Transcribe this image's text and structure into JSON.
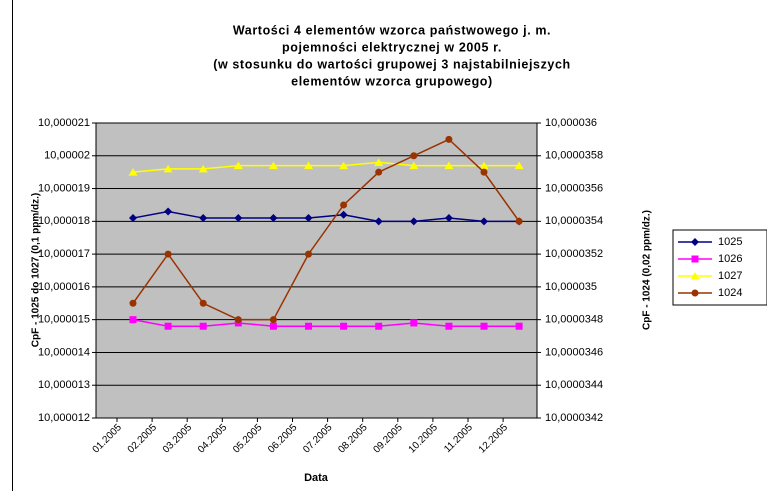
{
  "chart_data": {
    "type": "line",
    "title": [
      "Wartości 4 elementów wzorca państwowego j. m.",
      "pojemności elektrycznej w 2005 r.",
      "(w stosunku do wartości grupowej 3 najstabilniejszych",
      "elementów wzorca grupowego)"
    ],
    "x_label": "Data",
    "y_label": "CpF - 1025 do 1027 (0,1 ppm/dz.)",
    "y2_label": "CpF - 1024 (0,02 ppm/dz.)",
    "categories": [
      "01.2005",
      "02.2005",
      "03.2005",
      "04.2005",
      "05.2005",
      "06.2005",
      "07.2005",
      "08.2005",
      "09.2005",
      "10.2005",
      "11.2005",
      "12.2005"
    ],
    "ylim": [
      10.000012,
      10.000021
    ],
    "yticks": [
      {
        "value": 10.000012,
        "label": "10,000012"
      },
      {
        "value": 10.000013,
        "label": "10,000013"
      },
      {
        "value": 10.000014,
        "label": "10,000014"
      },
      {
        "value": 10.000015,
        "label": "10,000015"
      },
      {
        "value": 10.000016,
        "label": "10,000016"
      },
      {
        "value": 10.000017,
        "label": "10,000017"
      },
      {
        "value": 10.000018,
        "label": "10,000018"
      },
      {
        "value": 10.000019,
        "label": "10,000019"
      },
      {
        "value": 10.00002,
        "label": "10,00002"
      },
      {
        "value": 10.000021,
        "label": "10,000021"
      }
    ],
    "y2lim": [
      10.0000342,
      10.000036
    ],
    "y2ticks": [
      {
        "value": 10.0000342,
        "label": "10,0000342"
      },
      {
        "value": 10.0000344,
        "label": "10,0000344"
      },
      {
        "value": 10.0000346,
        "label": "10,0000346"
      },
      {
        "value": 10.0000348,
        "label": "10,0000348"
      },
      {
        "value": 10.000035,
        "label": "10,000035"
      },
      {
        "value": 10.0000352,
        "label": "10,0000352"
      },
      {
        "value": 10.0000354,
        "label": "10,0000354"
      },
      {
        "value": 10.0000356,
        "label": "10,0000356"
      },
      {
        "value": 10.0000358,
        "label": "10,0000358"
      },
      {
        "value": 10.000036,
        "label": "10,000036"
      }
    ],
    "grid": true,
    "legend": "right",
    "series": [
      {
        "name": "1025",
        "color": "#000080",
        "marker": "diamond",
        "values": [
          10.0000181,
          10.0000183,
          10.0000181,
          10.0000181,
          10.0000181,
          10.0000181,
          10.0000182,
          10.000018,
          10.000018,
          10.0000181,
          10.000018,
          10.000018
        ]
      },
      {
        "name": "1026",
        "color": "#ff00ff",
        "marker": "square",
        "values": [
          10.000015,
          10.0000148,
          10.0000148,
          10.0000149,
          10.0000148,
          10.0000148,
          10.0000148,
          10.0000148,
          10.0000149,
          10.0000148,
          10.0000148,
          10.0000148
        ]
      },
      {
        "name": "1027",
        "color": "#ffff00",
        "marker": "triangle",
        "values": [
          10.0000195,
          10.0000196,
          10.0000196,
          10.0000197,
          10.0000197,
          10.0000197,
          10.0000197,
          10.0000198,
          10.0000197,
          10.0000197,
          10.0000197,
          10.0000197
        ]
      },
      {
        "name": "1024",
        "color": "#993300",
        "marker": "circle",
        "axis": "y2",
        "values": [
          10.0000349,
          10.0000352,
          10.0000349,
          10.0000348,
          10.0000348,
          10.0000352,
          10.0000355,
          10.0000357,
          10.0000358,
          10.0000359,
          10.0000357,
          10.0000354
        ]
      }
    ]
  }
}
